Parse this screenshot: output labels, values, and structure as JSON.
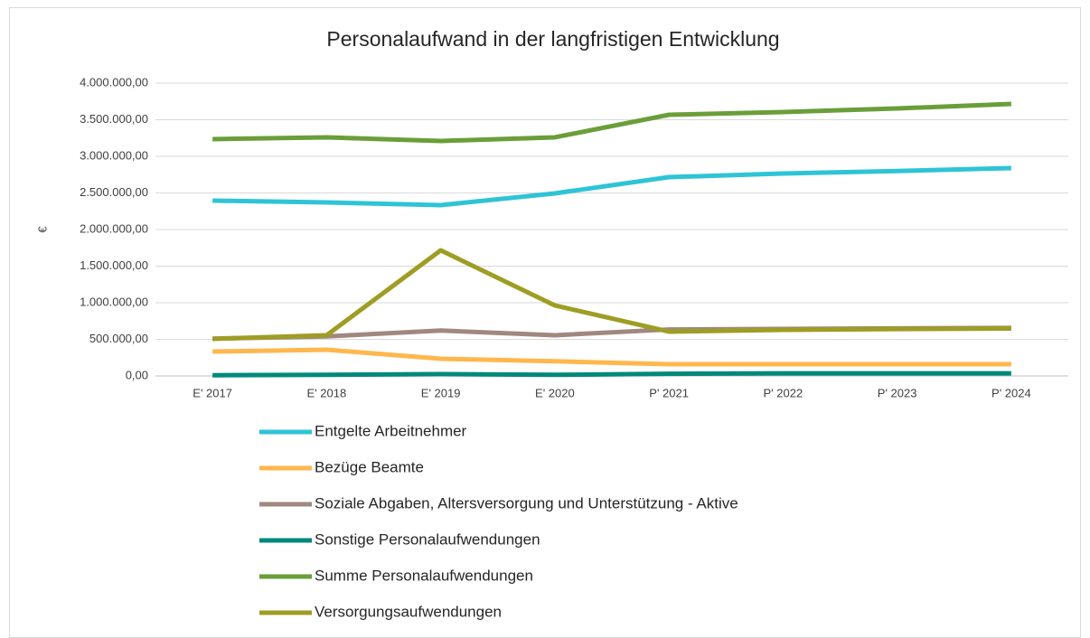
{
  "chart_data": {
    "type": "line",
    "title": "Personalaufwand in der langfristigen Entwicklung",
    "y_label": "€",
    "categories": [
      "E' 2017",
      "E' 2018",
      "E' 2019",
      "E' 2020",
      "P' 2021",
      "P' 2022",
      "P' 2023",
      "P' 2024"
    ],
    "series": [
      {
        "name": "Entgelte Arbeitnehmer",
        "color": "#2ec4d6",
        "values": [
          2395000,
          2370000,
          2333000,
          2494000,
          2716000,
          2765000,
          2800000,
          2840000
        ]
      },
      {
        "name": "Bezüge Beamte",
        "color": "#ffb74d",
        "values": [
          333000,
          358000,
          235000,
          200000,
          160000,
          160000,
          160000,
          160000
        ]
      },
      {
        "name": "Soziale Abgaben, Altersversorgung und Unterstützung - Aktive",
        "color": "#a1887f",
        "values": [
          510000,
          540000,
          620000,
          556000,
          635000,
          642000,
          650000,
          656000
        ]
      },
      {
        "name": "Sonstige Personalaufwendungen",
        "color": "#00897b",
        "values": [
          10000,
          15000,
          25000,
          15000,
          30000,
          35000,
          35000,
          35000
        ]
      },
      {
        "name": "Summe Personalaufwendungen",
        "color": "#6a9e3a",
        "values": [
          3235000,
          3260000,
          3210000,
          3260000,
          3568000,
          3605000,
          3654000,
          3716000
        ]
      },
      {
        "name": "Versorgungsaufwendungen",
        "color": "#9e9d24",
        "values": [
          506000,
          556000,
          1716000,
          963000,
          605000,
          630000,
          640000,
          648000
        ]
      }
    ],
    "ylim": [
      0,
      4000000
    ],
    "yticks": [
      {
        "value": 0,
        "label": "0,00"
      },
      {
        "value": 500000,
        "label": "500.000,00"
      },
      {
        "value": 1000000,
        "label": "1.000.000,00"
      },
      {
        "value": 1500000,
        "label": "1.500.000,00"
      },
      {
        "value": 2000000,
        "label": "2.000.000,00"
      },
      {
        "value": 2500000,
        "label": "2.500.000,00"
      },
      {
        "value": 3000000,
        "label": "3.000.000,00"
      },
      {
        "value": 3500000,
        "label": "3.500.000,00"
      },
      {
        "value": 4000000,
        "label": "4.000.000,00"
      }
    ],
    "grid": true,
    "legend": "bottom"
  }
}
